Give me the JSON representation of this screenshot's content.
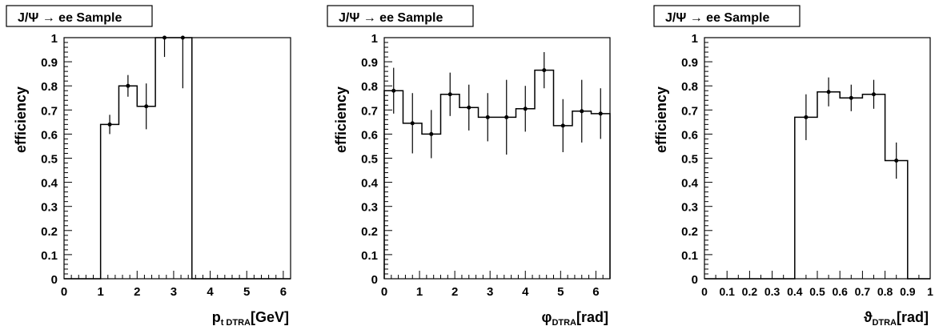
{
  "chart_data": [
    {
      "type": "line",
      "style": "step histogram with error bars",
      "title": "J/Ψ → ee Sample",
      "ylabel": "efficiency",
      "xlabel": {
        "base": "p",
        "sub": "t DTRA",
        "unit": "[GeV]"
      },
      "xlim": [
        0,
        6.2
      ],
      "ylim": [
        0,
        1
      ],
      "xticks": [
        0,
        1,
        2,
        3,
        4,
        5,
        6
      ],
      "xtick_labels": [
        "0",
        "1",
        "2",
        "3",
        "4",
        "5",
        "6"
      ],
      "yticks": [
        0,
        0.1,
        0.2,
        0.3,
        0.4,
        0.5,
        0.6,
        0.7,
        0.8,
        0.9,
        1
      ],
      "ytick_labels": [
        "0",
        "0.1",
        "0.2",
        "0.3",
        "0.4",
        "0.5",
        "0.6",
        "0.7",
        "0.8",
        "0.9",
        "1"
      ],
      "bin_edges": [
        0,
        0.5,
        1.0,
        1.5,
        2.0,
        2.5,
        3.0,
        3.5,
        4.0,
        4.5,
        5.0,
        5.5,
        6.0,
        6.2
      ],
      "values": [
        0,
        0,
        0.64,
        0.8,
        0.715,
        1.0,
        1.0,
        0,
        0,
        0,
        0,
        0,
        0
      ],
      "errors": [
        0,
        0,
        0.04,
        0.045,
        0.095,
        0.08,
        0.21,
        0,
        0,
        0,
        0,
        0,
        0
      ],
      "markers": [
        false,
        false,
        true,
        true,
        true,
        true,
        true,
        false,
        false,
        false,
        false,
        false,
        false
      ]
    },
    {
      "type": "line",
      "style": "step histogram with error bars",
      "title": "J/Ψ → ee Sample",
      "ylabel": "efficiency",
      "xlabel": {
        "base": "φ",
        "sub": "DTRA",
        "unit": "[rad]"
      },
      "xlim": [
        0,
        6.4
      ],
      "ylim": [
        0,
        1
      ],
      "xticks": [
        0,
        1,
        2,
        3,
        4,
        5,
        6
      ],
      "xtick_labels": [
        "0",
        "1",
        "2",
        "3",
        "4",
        "5",
        "6"
      ],
      "yticks": [
        0,
        0.1,
        0.2,
        0.3,
        0.4,
        0.5,
        0.6,
        0.7,
        0.8,
        0.9,
        1
      ],
      "ytick_labels": [
        "0",
        "0.1",
        "0.2",
        "0.3",
        "0.4",
        "0.5",
        "0.6",
        "0.7",
        "0.8",
        "0.9",
        "1"
      ],
      "bin_edges": [
        0,
        0.533,
        1.067,
        1.6,
        2.133,
        2.667,
        3.2,
        3.733,
        4.267,
        4.8,
        5.333,
        5.867,
        6.4
      ],
      "values": [
        0.78,
        0.645,
        0.6,
        0.765,
        0.71,
        0.67,
        0.67,
        0.705,
        0.865,
        0.635,
        0.695,
        0.685
      ],
      "errors": [
        0.095,
        0.125,
        0.1,
        0.09,
        0.095,
        0.1,
        0.155,
        0.095,
        0.075,
        0.11,
        0.13,
        0.105
      ],
      "markers": [
        true,
        true,
        true,
        true,
        true,
        true,
        true,
        true,
        true,
        true,
        true,
        true
      ]
    },
    {
      "type": "line",
      "style": "step histogram with error bars",
      "title": "J/Ψ → ee Sample",
      "ylabel": "efficiency",
      "xlabel": {
        "base": "ϑ",
        "sub": "DTRA",
        "unit": "[rad]"
      },
      "xlim": [
        0,
        1
      ],
      "ylim": [
        0,
        1
      ],
      "xticks": [
        0,
        0.1,
        0.2,
        0.3,
        0.4,
        0.5,
        0.6,
        0.7,
        0.8,
        0.9,
        1
      ],
      "xtick_labels": [
        "0",
        "0.1",
        "0.2",
        "0.3",
        "0.4",
        "0.5",
        "0.6",
        "0.7",
        "0.8",
        "0.9",
        "1"
      ],
      "yticks": [
        0,
        0.1,
        0.2,
        0.3,
        0.4,
        0.5,
        0.6,
        0.7,
        0.8,
        0.9,
        1
      ],
      "ytick_labels": [
        "0",
        "0.1",
        "0.2",
        "0.3",
        "0.4",
        "0.5",
        "0.6",
        "0.7",
        "0.8",
        "0.9",
        "1"
      ],
      "bin_edges": [
        0,
        0.1,
        0.2,
        0.3,
        0.4,
        0.5,
        0.6,
        0.7,
        0.8,
        0.9,
        1.0
      ],
      "values": [
        0,
        0,
        0,
        0,
        0.67,
        0.775,
        0.75,
        0.765,
        0.49,
        0
      ],
      "errors": [
        0,
        0,
        0,
        0,
        0.095,
        0.06,
        0.055,
        0.06,
        0.075,
        0
      ],
      "markers": [
        false,
        false,
        false,
        false,
        true,
        true,
        true,
        true,
        true,
        false
      ]
    }
  ]
}
